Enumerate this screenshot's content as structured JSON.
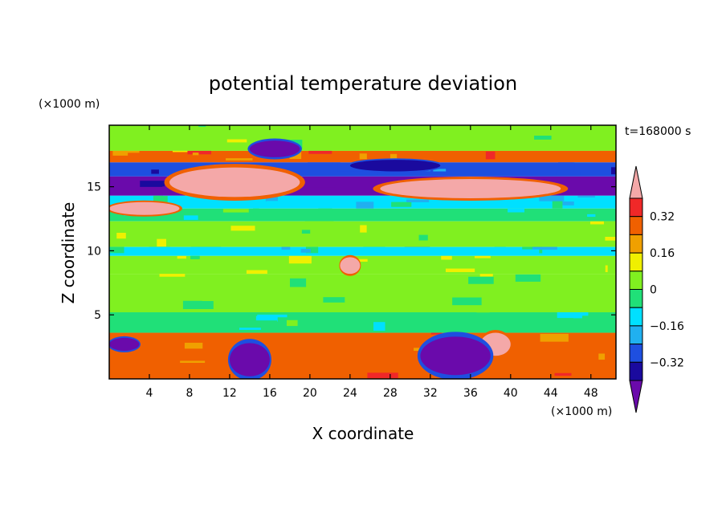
{
  "chart_data": {
    "type": "heatmap",
    "title": "potential temperature deviation",
    "xlabel": "X coordinate",
    "ylabel": "Z coordinate",
    "x_unit": "(×1000 m)",
    "y_unit": "(×1000 m)",
    "time_label": "t=168000 s",
    "xlim": [
      0,
      50.5
    ],
    "ylim": [
      0,
      19.8
    ],
    "x_ticks": [
      4,
      8,
      12,
      16,
      20,
      24,
      28,
      32,
      36,
      40,
      44,
      48
    ],
    "y_ticks": [
      5,
      10,
      15
    ],
    "colorbar": {
      "levels": [
        -0.4,
        -0.32,
        -0.24,
        -0.16,
        -0.08,
        0,
        0.08,
        0.16,
        0.24,
        0.32,
        0.4
      ],
      "labeled_levels": [
        0.32,
        0.16,
        0,
        -0.16,
        -0.32
      ],
      "colors": [
        "#6a0aab",
        "#1a0a9e",
        "#1e4fe0",
        "#20b0f0",
        "#00e0ff",
        "#20e078",
        "#80f020",
        "#f0f000",
        "#f0a000",
        "#f06000",
        "#f02828",
        "#f4a8a8"
      ],
      "extend": "both"
    },
    "field_bands": [
      {
        "z_from": 17.8,
        "z_to": 19.8,
        "value": 0.05
      },
      {
        "z_from": 16.9,
        "z_to": 17.8,
        "value": 0.25
      },
      {
        "z_from": 15.8,
        "z_to": 16.9,
        "value": -0.3
      },
      {
        "z_from": 14.3,
        "z_to": 15.8,
        "value": -0.45
      },
      {
        "z_from": 13.3,
        "z_to": 14.3,
        "value": -0.12
      },
      {
        "z_from": 12.3,
        "z_to": 13.3,
        "value": -0.04
      },
      {
        "z_from": 10.3,
        "z_to": 12.3,
        "value": 0.05
      },
      {
        "z_from": 9.6,
        "z_to": 10.3,
        "value": -0.12
      },
      {
        "z_from": 8.2,
        "z_to": 9.6,
        "value": 0.05
      },
      {
        "z_from": 5.2,
        "z_to": 8.2,
        "value": 0.03
      },
      {
        "z_from": 3.6,
        "z_to": 5.2,
        "value": -0.05
      },
      {
        "z_from": 0,
        "z_to": 3.6,
        "value": 0.25
      }
    ],
    "warm_anomalies": [
      {
        "x_from": 6,
        "x_to": 19,
        "z_from": 14.2,
        "z_to": 16.5,
        "value": 0.45
      },
      {
        "x_from": 27,
        "x_to": 45,
        "z_from": 14.1,
        "z_to": 15.6,
        "value": 0.45
      },
      {
        "x_from": 23,
        "x_to": 25,
        "z_from": 8.2,
        "z_to": 9.5,
        "value": 0.45
      },
      {
        "x_from": 0,
        "x_to": 7,
        "z_from": 12.8,
        "z_to": 13.8,
        "value": 0.45
      },
      {
        "x_from": 37,
        "x_to": 40,
        "z_from": 1.8,
        "z_to": 3.6,
        "value": 0.45
      }
    ],
    "cold_anomalies": [
      {
        "x_from": 14,
        "x_to": 19,
        "z_from": 17.3,
        "z_to": 18.6,
        "value": -0.45
      },
      {
        "x_from": 24,
        "x_to": 33,
        "z_from": 16.2,
        "z_to": 17.1,
        "value": -0.35
      },
      {
        "x_from": 12,
        "x_to": 16,
        "z_from": 0.2,
        "z_to": 2.8,
        "value": -0.45
      },
      {
        "x_from": 31,
        "x_to": 38,
        "z_from": 0.3,
        "z_to": 3.3,
        "value": -0.45
      },
      {
        "x_from": 0,
        "x_to": 3,
        "z_from": 2.2,
        "z_to": 3.2,
        "value": -0.45
      }
    ]
  }
}
